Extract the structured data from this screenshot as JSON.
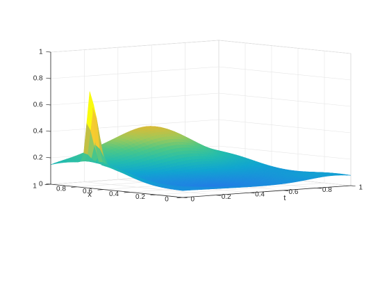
{
  "chart_data": {
    "type": "surface",
    "xlabel": "t",
    "ylabel": "x",
    "zlabel": "",
    "xlim": [
      0,
      1
    ],
    "ylim": [
      0,
      1
    ],
    "zlim": [
      0,
      1
    ],
    "xticks": [
      "0",
      "0.2",
      "0.4",
      "0.6",
      "0.8",
      "1"
    ],
    "yticks": [
      "0",
      "0.2",
      "0.4",
      "0.6",
      "0.8",
      "1"
    ],
    "zticks": [
      "0",
      "0.2",
      "0.4",
      "0.6",
      "0.8",
      "1"
    ],
    "grid": true,
    "colormap": "parula",
    "colormap_stops": [
      "#3e26a8",
      "#2f57f5",
      "#1e86e1",
      "#10a5d0",
      "#22bcaf",
      "#4cc787",
      "#a0c858",
      "#dbba35",
      "#fdd02e",
      "#f9fb0e"
    ],
    "surface_samples": {
      "t": [
        0,
        0.1,
        0.2,
        0.3,
        0.4,
        0.5,
        0.6,
        0.7,
        0.8,
        0.9,
        1.0
      ],
      "x": [
        1.0,
        0.9,
        0.8,
        0.7,
        0.6,
        0.5,
        0.4,
        0.3,
        0.2,
        0.1,
        0.0
      ],
      "z_at_t0": [
        0.1,
        0.05,
        0.2,
        0.62,
        0.25,
        0.05,
        0.04,
        0.04,
        0.04,
        0.05,
        0.05
      ],
      "z_at_x1": [
        0.1,
        0.22,
        0.26,
        0.3,
        0.33,
        0.37,
        0.42,
        0.42,
        0.38,
        0.28,
        0.2
      ],
      "z_at_t1": [
        0.2,
        0.15,
        0.08,
        0.06,
        0.08,
        0.1,
        0.12,
        0.11,
        0.1,
        0.1,
        0.1
      ],
      "z_at_x0": [
        0.05,
        0.06,
        0.08,
        0.1,
        0.08,
        0.05,
        0.05,
        0.07,
        0.1,
        0.1,
        0.1
      ]
    }
  }
}
